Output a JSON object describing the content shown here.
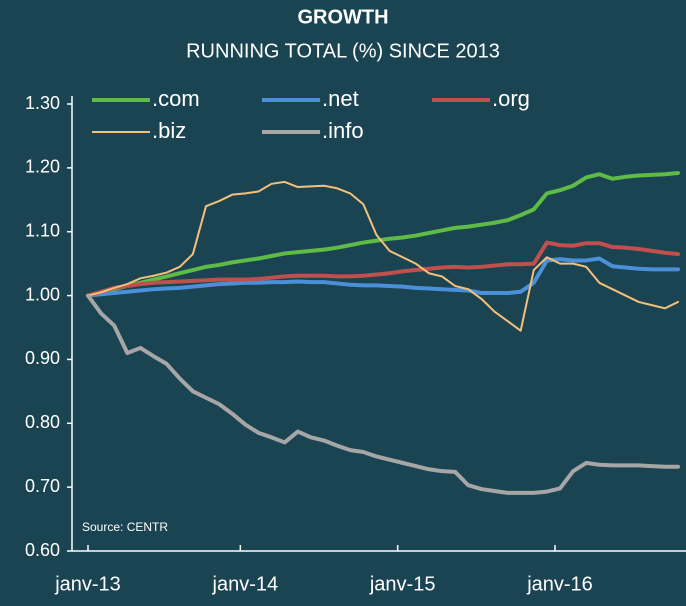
{
  "chart_data": {
    "type": "line",
    "title": "GROWTH",
    "subtitle": "RUNNING TOTAL (%) SINCE 2013",
    "annotation": "Source: CENTR",
    "categories": [
      "janv-13",
      null,
      null,
      null,
      null,
      null,
      null,
      null,
      null,
      null,
      null,
      null,
      "janv-14",
      null,
      null,
      null,
      null,
      null,
      null,
      null,
      null,
      null,
      null,
      null,
      "janv-15",
      null,
      null,
      null,
      null,
      null,
      null,
      null,
      null,
      null,
      null,
      null,
      "janv-16",
      null,
      null,
      null,
      null,
      null,
      null,
      null,
      null,
      null
    ],
    "ylim": [
      0.6,
      1.3
    ],
    "yticks": [
      {
        "value": 0.6,
        "label": "0.60"
      },
      {
        "value": 0.7,
        "label": "0.70"
      },
      {
        "value": 0.8,
        "label": "0.80"
      },
      {
        "value": 0.9,
        "label": "0.90"
      },
      {
        "value": 1.0,
        "label": "1.00"
      },
      {
        "value": 1.1,
        "label": "1.10"
      },
      {
        "value": 1.2,
        "label": "1.20"
      },
      {
        "value": 1.3,
        "label": "1.30"
      }
    ],
    "grid": false,
    "legend": "top",
    "series": [
      {
        "name": ".com",
        "color": "#5dbb46",
        "width": 4,
        "values": [
          1.0,
          1.005,
          1.01,
          1.015,
          1.02,
          1.025,
          1.03,
          1.035,
          1.04,
          1.045,
          1.048,
          1.052,
          1.055,
          1.058,
          1.062,
          1.066,
          1.068,
          1.07,
          1.072,
          1.075,
          1.079,
          1.083,
          1.086,
          1.089,
          1.091,
          1.094,
          1.098,
          1.102,
          1.106,
          1.108,
          1.111,
          1.114,
          1.118,
          1.126,
          1.135,
          1.16,
          1.165,
          1.172,
          1.185,
          1.19,
          1.183,
          1.186,
          1.188,
          1.189,
          1.19,
          1.192
        ]
      },
      {
        "name": ".net",
        "color": "#4a90d9",
        "width": 4,
        "values": [
          1.0,
          1.002,
          1.004,
          1.006,
          1.008,
          1.01,
          1.011,
          1.012,
          1.014,
          1.016,
          1.018,
          1.019,
          1.02,
          1.02,
          1.021,
          1.021,
          1.022,
          1.021,
          1.021,
          1.019,
          1.017,
          1.016,
          1.016,
          1.015,
          1.014,
          1.012,
          1.011,
          1.01,
          1.009,
          1.008,
          1.004,
          1.004,
          1.004,
          1.006,
          1.02,
          1.055,
          1.057,
          1.055,
          1.055,
          1.058,
          1.046,
          1.044,
          1.042,
          1.041,
          1.041,
          1.041
        ]
      },
      {
        "name": ".org",
        "color": "#c0504d",
        "width": 4,
        "values": [
          1.0,
          1.006,
          1.012,
          1.015,
          1.018,
          1.02,
          1.021,
          1.022,
          1.023,
          1.024,
          1.025,
          1.025,
          1.025,
          1.026,
          1.028,
          1.03,
          1.031,
          1.031,
          1.031,
          1.03,
          1.03,
          1.031,
          1.033,
          1.035,
          1.038,
          1.04,
          1.042,
          1.044,
          1.045,
          1.044,
          1.045,
          1.047,
          1.049,
          1.049,
          1.05,
          1.083,
          1.079,
          1.078,
          1.082,
          1.082,
          1.076,
          1.075,
          1.073,
          1.07,
          1.067,
          1.065
        ]
      },
      {
        "name": ".biz",
        "color": "#f5c07a",
        "width": 2,
        "values": [
          1.0,
          1.005,
          1.012,
          1.018,
          1.027,
          1.031,
          1.036,
          1.045,
          1.065,
          1.14,
          1.148,
          1.158,
          1.16,
          1.163,
          1.175,
          1.178,
          1.17,
          1.171,
          1.172,
          1.168,
          1.16,
          1.143,
          1.095,
          1.07,
          1.06,
          1.05,
          1.035,
          1.03,
          1.015,
          1.01,
          0.995,
          0.975,
          0.96,
          0.945,
          1.04,
          1.06,
          1.05,
          1.05,
          1.045,
          1.02,
          1.01,
          1.0,
          0.99,
          0.985,
          0.98,
          0.99
        ]
      },
      {
        "name": ".info",
        "color": "#a6a6a6",
        "width": 4,
        "values": [
          1.0,
          0.972,
          0.953,
          0.91,
          0.918,
          0.905,
          0.893,
          0.87,
          0.85,
          0.84,
          0.83,
          0.815,
          0.798,
          0.785,
          0.778,
          0.77,
          0.787,
          0.778,
          0.773,
          0.765,
          0.758,
          0.755,
          0.748,
          0.743,
          0.738,
          0.733,
          0.728,
          0.725,
          0.724,
          0.703,
          0.697,
          0.694,
          0.691,
          0.691,
          0.691,
          0.693,
          0.698,
          0.725,
          0.738,
          0.735,
          0.734,
          0.734,
          0.734,
          0.733,
          0.732,
          0.732
        ]
      }
    ]
  }
}
